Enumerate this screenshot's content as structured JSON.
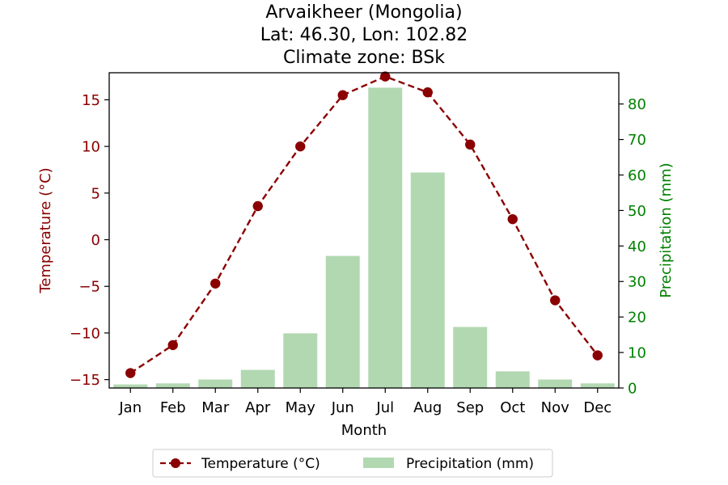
{
  "chart_data": {
    "type": "bar+line",
    "title_lines": [
      "Arvaikheer (Mongolia)",
      "Lat: 46.30, Lon: 102.82",
      "Climate zone: BSk"
    ],
    "xlabel": "Month",
    "categories": [
      "Jan",
      "Feb",
      "Mar",
      "Apr",
      "May",
      "Jun",
      "Jul",
      "Aug",
      "Sep",
      "Oct",
      "Nov",
      "Dec"
    ],
    "series": [
      {
        "name": "Temperature (°C)",
        "axis": "left",
        "kind": "line",
        "style": "dashed-with-markers",
        "color": "#8b0000",
        "values": [
          -14.3,
          -11.3,
          -4.7,
          3.6,
          10.0,
          15.5,
          17.5,
          15.8,
          10.2,
          2.2,
          -6.5,
          -12.4
        ]
      },
      {
        "name": "Precipitation (mm)",
        "axis": "right",
        "kind": "bar",
        "color": "#b2d8b2",
        "values": [
          1.0,
          1.3,
          2.4,
          5.1,
          15.4,
          37.2,
          84.6,
          60.7,
          17.2,
          4.7,
          2.4,
          1.3
        ]
      }
    ],
    "y_left": {
      "label": "Temperature (°C)",
      "color": "#8b0000",
      "lim": [
        -15.9,
        17.9
      ],
      "ticks": [
        -15,
        -10,
        -5,
        0,
        5,
        10,
        15
      ],
      "tick_labels": [
        "−15",
        "−10",
        "−5",
        "0",
        "5",
        "10",
        "15"
      ]
    },
    "y_right": {
      "label": "Precipitation (mm)",
      "color": "#008000",
      "lim": [
        0,
        88.8
      ],
      "ticks": [
        0,
        10,
        20,
        30,
        40,
        50,
        60,
        70,
        80
      ],
      "tick_labels": [
        "0",
        "10",
        "20",
        "30",
        "40",
        "50",
        "60",
        "70",
        "80"
      ]
    },
    "grid": false,
    "legend": {
      "placement": "bottom-center",
      "entries": [
        "Temperature (°C)",
        "Precipitation (mm)"
      ]
    }
  }
}
